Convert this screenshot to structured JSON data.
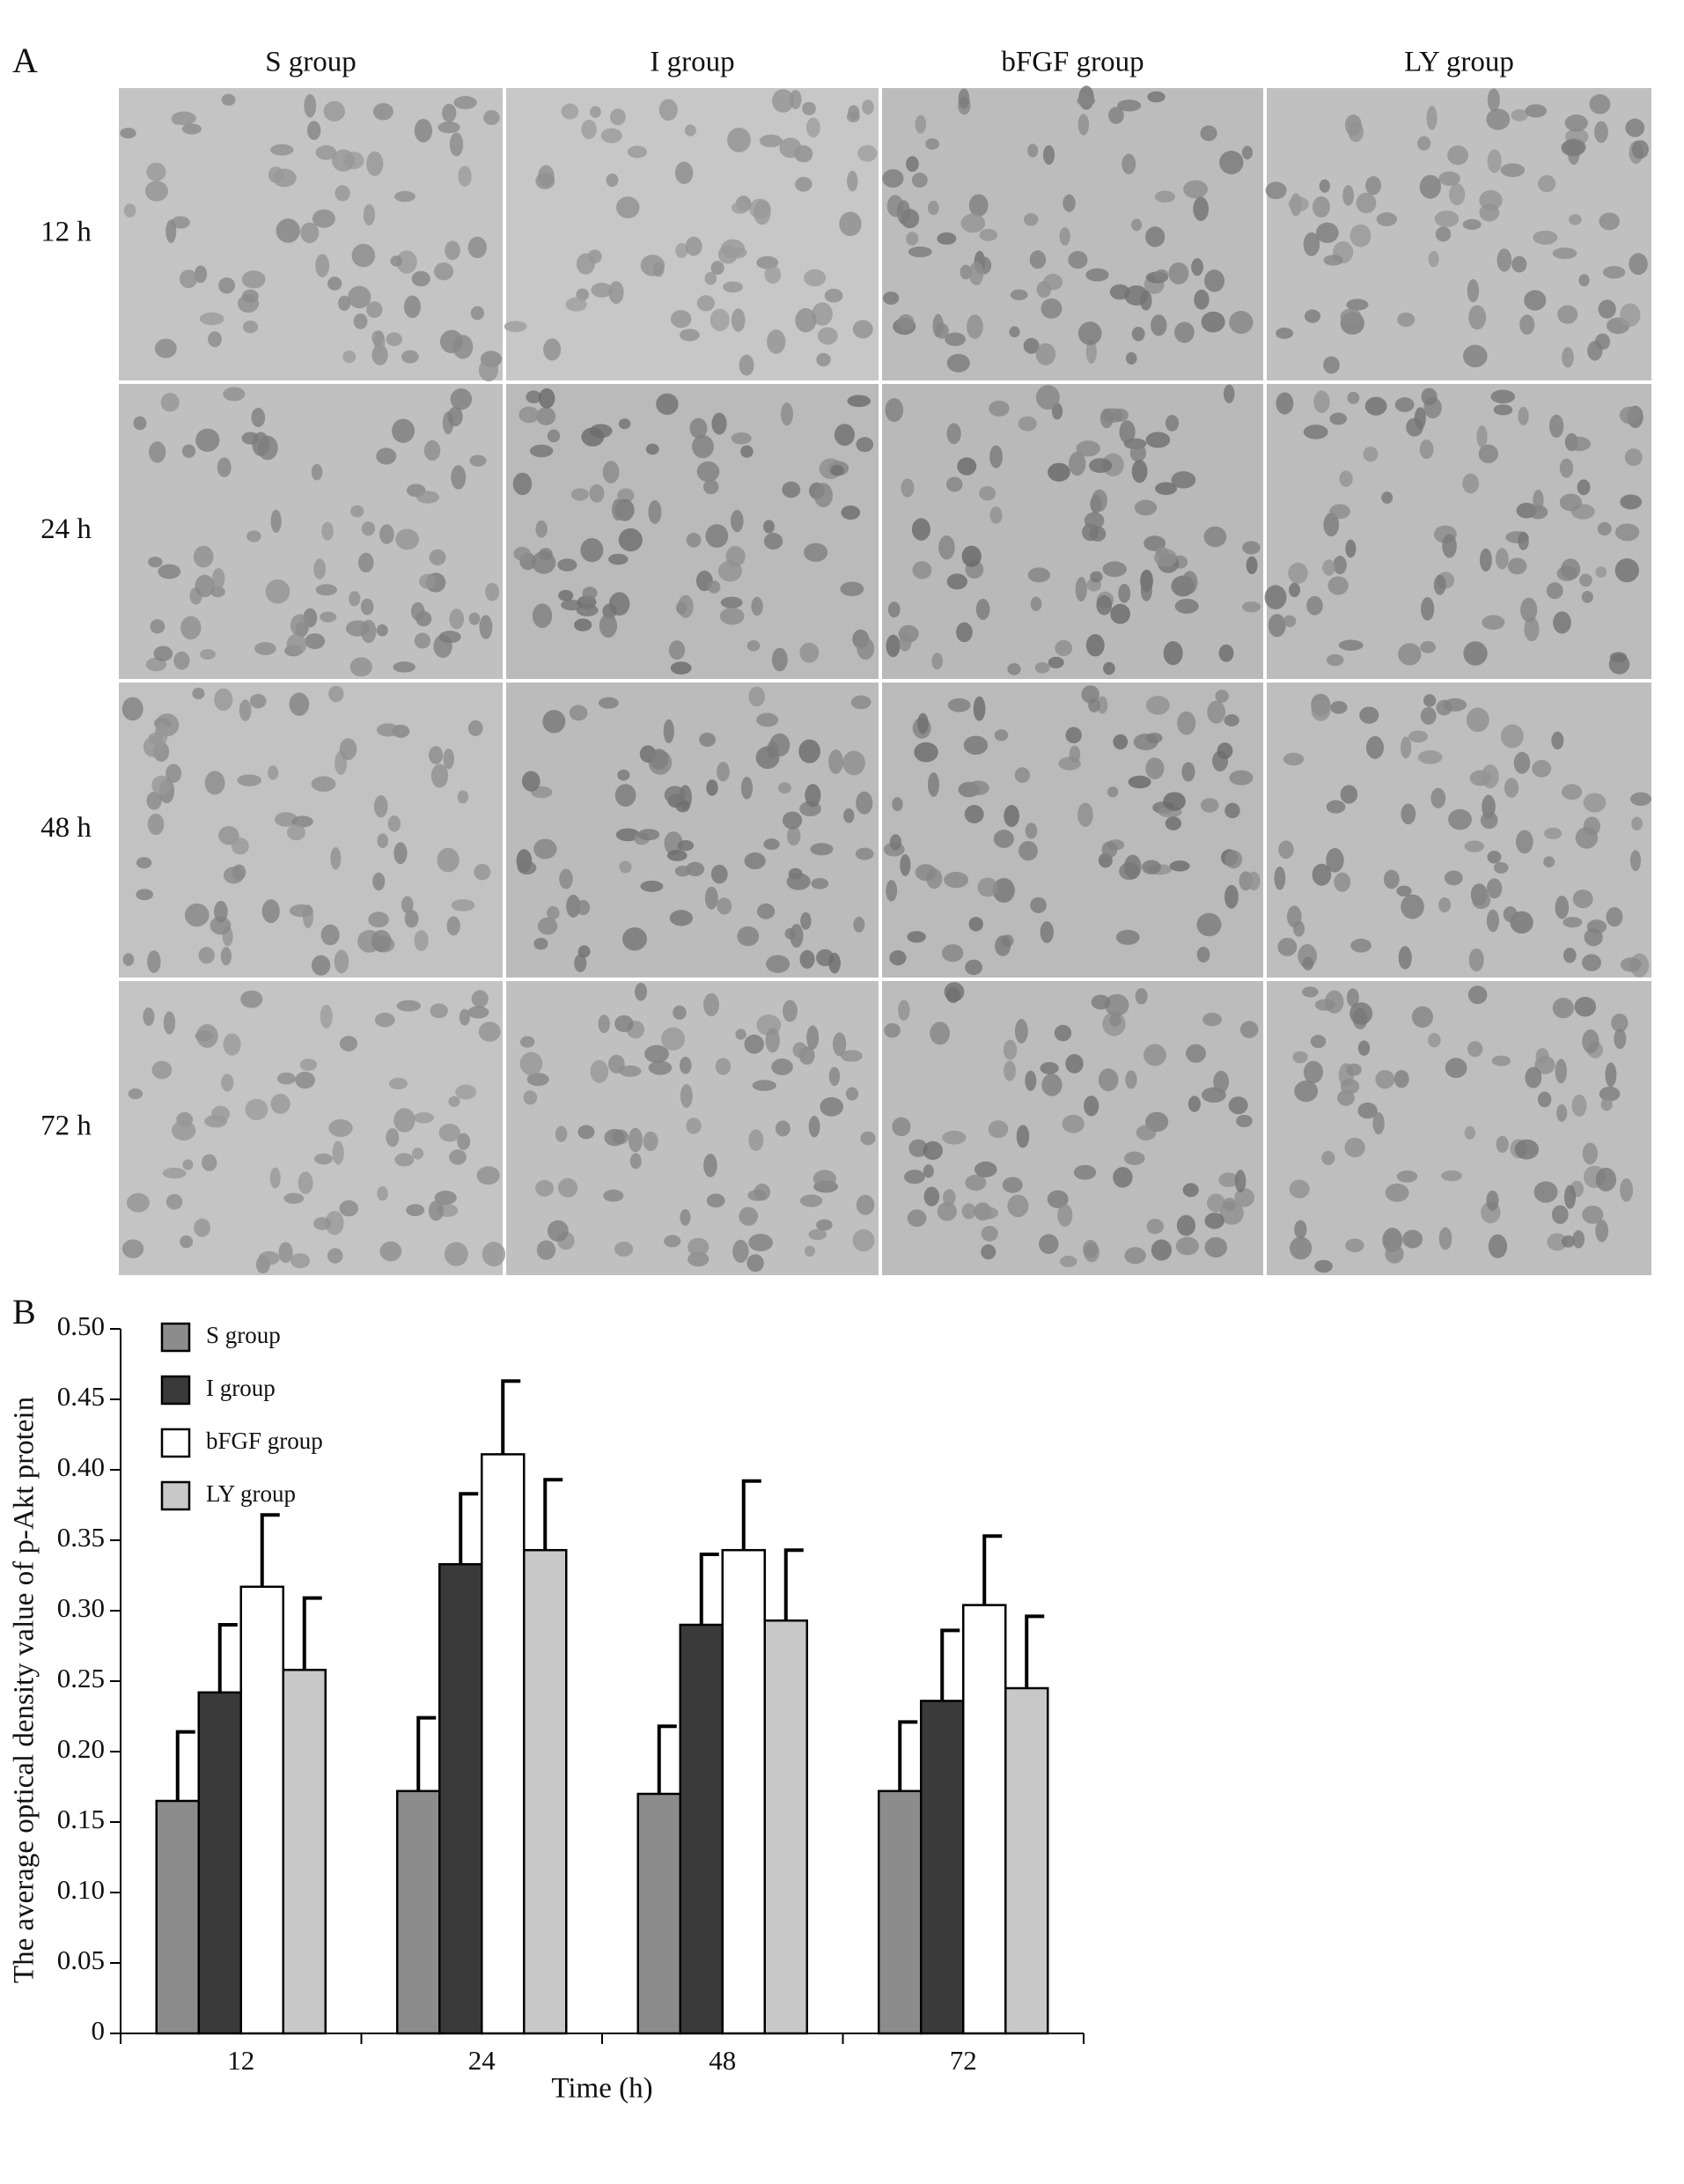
{
  "panel_a": {
    "label": "A",
    "columns": [
      "S group",
      "I group",
      "bFGF group",
      "LY group"
    ],
    "rows": [
      "12 h",
      "24 h",
      "48 h",
      "72 h"
    ]
  },
  "chart_data": {
    "type": "bar",
    "label": "B",
    "x_label": "Time (h)",
    "y_label": "The average optical density value of p-Akt protein",
    "categories": [
      "12",
      "24",
      "48",
      "72"
    ],
    "series": [
      {
        "name": "S group",
        "color": "#8c8c8c",
        "values": [
          0.165,
          0.172,
          0.17,
          0.172
        ],
        "errors": [
          0.049,
          0.052,
          0.048,
          0.049
        ]
      },
      {
        "name": "I group",
        "color": "#3a3a3a",
        "values": [
          0.242,
          0.333,
          0.29,
          0.236
        ],
        "errors": [
          0.048,
          0.05,
          0.05,
          0.05
        ]
      },
      {
        "name": "bFGF group",
        "color": "#ffffff",
        "values": [
          0.317,
          0.411,
          0.343,
          0.304
        ],
        "errors": [
          0.051,
          0.052,
          0.049,
          0.049
        ]
      },
      {
        "name": "LY group",
        "color": "#c8c8c8",
        "values": [
          0.258,
          0.343,
          0.293,
          0.245
        ],
        "errors": [
          0.051,
          0.05,
          0.05,
          0.051
        ]
      }
    ],
    "ylim": [
      0,
      0.5
    ],
    "yticks": [
      0,
      0.05,
      {
        "value": 0.1,
        "label": "0.10"
      },
      0.15,
      {
        "value": 0.2,
        "label": "0.20"
      },
      0.25,
      {
        "value": 0.3,
        "label": "0.30"
      },
      0.35,
      {
        "value": 0.4,
        "label": "0.40"
      },
      0.45,
      {
        "value": 0.5,
        "label": "0.50"
      }
    ],
    "legend": "upper-left",
    "grid": false
  }
}
